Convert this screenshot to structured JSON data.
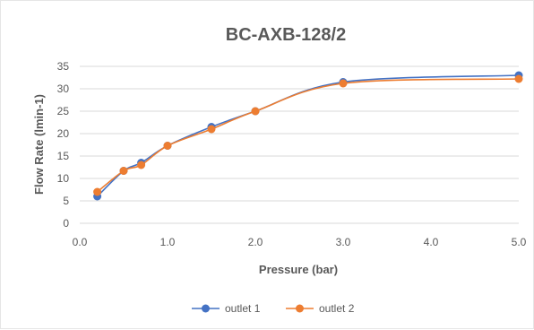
{
  "chart_data": {
    "type": "line",
    "title": "BC-AXB-128/2",
    "xlabel": "Pressure (bar)",
    "ylabel": "Flow Rate (lmin-1)",
    "xlim": [
      0,
      5
    ],
    "ylim": [
      0,
      35
    ],
    "xticks": [
      "0.0",
      "1.0",
      "2.0",
      "3.0",
      "4.0",
      "5.0"
    ],
    "yticks": [
      "0",
      "5",
      "10",
      "15",
      "20",
      "25",
      "30",
      "35"
    ],
    "grid": true,
    "legend_position": "bottom",
    "series": [
      {
        "name": "outlet 1",
        "color": "#4472c4",
        "x": [
          0.2,
          0.5,
          0.7,
          1.0,
          1.5,
          2.0,
          3.0,
          5.0
        ],
        "y": [
          6,
          11.7,
          13.5,
          17.3,
          21.5,
          25,
          31.5,
          33
        ]
      },
      {
        "name": "outlet 2",
        "color": "#ed7d31",
        "x": [
          0.2,
          0.5,
          0.7,
          1.0,
          1.5,
          2.0,
          3.0,
          5.0
        ],
        "y": [
          7,
          11.7,
          13,
          17.3,
          21,
          25,
          31.2,
          32.2
        ]
      }
    ]
  }
}
